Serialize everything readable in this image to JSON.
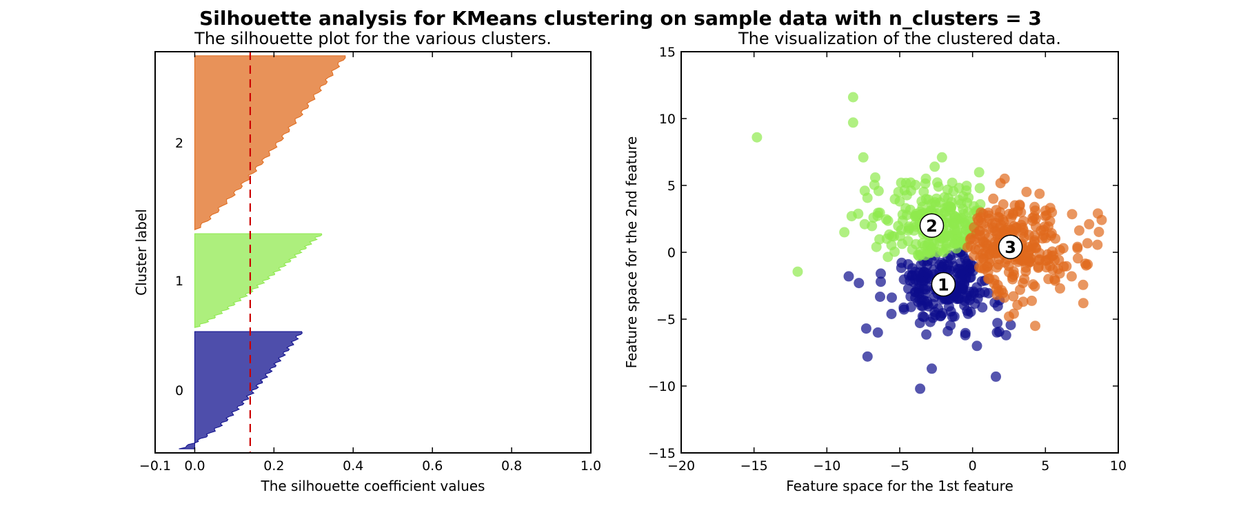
{
  "suptitle": "Silhouette analysis for KMeans clustering on sample data with n_clusters = 3",
  "chart_data": [
    {
      "type": "area",
      "title": "The silhouette plot for the various clusters.",
      "xlabel": "The silhouette coefficient values",
      "ylabel": "Cluster label",
      "xlim": [
        -0.1,
        1.0
      ],
      "xticks": [
        "−0.1",
        "0.0",
        "0.2",
        "0.4",
        "0.6",
        "0.8",
        "1.0"
      ],
      "xtick_values": [
        -0.1,
        0.0,
        0.2,
        0.4,
        0.6,
        0.8,
        1.0
      ],
      "average_silhouette": 0.14,
      "average_line_color": "#cc0000",
      "clusters": [
        {
          "label": "0",
          "color": "#0d0d8c",
          "size": 290,
          "max": 0.27,
          "min": -0.04
        },
        {
          "label": "1",
          "color": "#8ee94d",
          "size": 232,
          "max": 0.32,
          "min": 0.0
        },
        {
          "label": "2",
          "color": "#df6a1c",
          "size": 430,
          "max": 0.38,
          "min": 0.0
        }
      ]
    },
    {
      "type": "scatter",
      "title": "The visualization of the clustered data.",
      "xlabel": "Feature space for the 1st feature",
      "ylabel": "Feature space for the 2nd feature",
      "xlim": [
        -20,
        10
      ],
      "ylim": [
        -15,
        15
      ],
      "xticks": [
        "−20",
        "−15",
        "−10",
        "−5",
        "0",
        "5",
        "10"
      ],
      "xtick_values": [
        -20,
        -15,
        -10,
        -5,
        0,
        5,
        10
      ],
      "yticks": [
        "15",
        "10",
        "5",
        "0",
        "−5",
        "−10",
        "−15"
      ],
      "ytick_values": [
        15,
        10,
        5,
        0,
        -5,
        -10,
        -15
      ],
      "clusters": [
        {
          "label": "1",
          "color": "#0d0d8c",
          "center": [
            -2,
            -2.4
          ],
          "outliers": [
            [
              -3.6,
              -10.2
            ],
            [
              -2.8,
              -8.7
            ],
            [
              1.6,
              -9.3
            ],
            [
              -7.3,
              -5.7
            ],
            [
              -6.5,
              -6.0
            ],
            [
              -8.5,
              -1.8
            ],
            [
              -7.8,
              -2.3
            ],
            [
              -6.3,
              -2.2
            ],
            [
              0.3,
              -7.0
            ],
            [
              2.3,
              -6.2
            ],
            [
              -0.5,
              -6.2
            ],
            [
              -1.7,
              -5.9
            ]
          ]
        },
        {
          "label": "2",
          "color": "#8ee94d",
          "center": [
            -2.8,
            2.0
          ],
          "outliers": [
            [
              -14.8,
              8.6
            ],
            [
              -8.2,
              11.6
            ],
            [
              -8.2,
              9.7
            ],
            [
              -7.5,
              7.1
            ],
            [
              -7.4,
              4.6
            ],
            [
              -8.8,
              1.5
            ],
            [
              -8.3,
              2.7
            ],
            [
              -6.8,
              2.6
            ],
            [
              -2.1,
              7.1
            ],
            [
              -3.2,
              5.5
            ],
            [
              -2.6,
              6.4
            ],
            [
              -4.9,
              5.2
            ],
            [
              -1.4,
              5.2
            ],
            [
              -6.6,
              0.4
            ]
          ]
        },
        {
          "label": "3",
          "color": "#df6a1c",
          "center": [
            2.6,
            0.4
          ],
          "outliers": [
            [
              8.6,
              2.9
            ],
            [
              7.9,
              -0.9
            ],
            [
              7.6,
              -3.8
            ],
            [
              4.3,
              -5.5
            ],
            [
              2.2,
              5.5
            ],
            [
              2.5,
              -4.8
            ],
            [
              8.0,
              2.1
            ],
            [
              6.0,
              -2.7
            ],
            [
              6.8,
              -1.8
            ],
            [
              7.2,
              0.3
            ]
          ]
        }
      ]
    }
  ]
}
